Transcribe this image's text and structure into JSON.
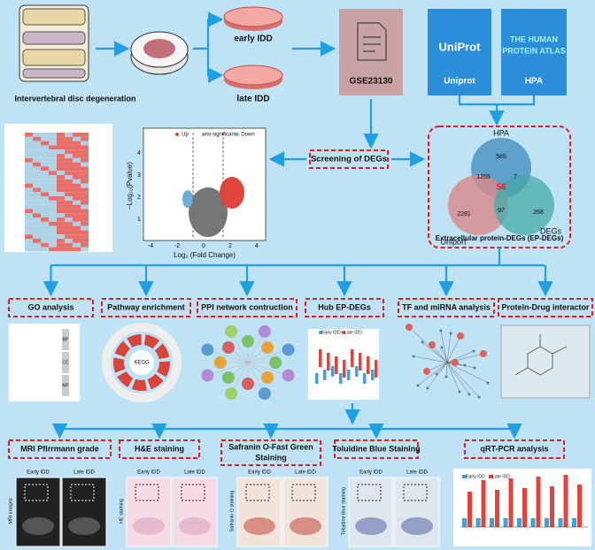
{
  "top": {
    "disc_label": "Intervertebral disc degeneration",
    "early": "early IDD",
    "late": "late IDD",
    "gse": "GSE23130",
    "uniprot_logo": "UniProt",
    "uniprot": "Uniprot",
    "hpa_logo": [
      "THE HUMAN",
      "PROTEIN ATLAS"
    ],
    "hpa": "HPA"
  },
  "screening": "Screening of DEGs",
  "volcano": {
    "legend": [
      "Up",
      "no significant",
      "Down"
    ],
    "x_label": "Log₂ (Fold Change)",
    "y_label": "−Log₁₀(Pvalue)",
    "xticks": [
      -4,
      -2,
      0,
      2,
      4
    ],
    "yticks": [
      1,
      2,
      3,
      4
    ]
  },
  "venn": {
    "labels": {
      "hpa": "HPA",
      "uniport": "Uniport",
      "degs": "DEGs"
    },
    "counts": {
      "hpa_only": 585,
      "hpa_uniport": 1255,
      "hpa_degs": 7,
      "all": 56,
      "uniport_only": 2281,
      "uniport_degs": 97,
      "degs_only": 268
    },
    "caption": "Extracellular protein-DEGs (EP-DEGs)"
  },
  "analyses": [
    "GO analysis",
    "Pathway enrichment",
    "PPI network contruction",
    "Hub  EP-DEGs",
    "TF and miRNA analysis",
    "Protein-Drug interactor"
  ],
  "thumbs": {
    "go_groups": [
      "BP",
      "CC",
      "MF"
    ],
    "kegg": "KEGG",
    "groups": [
      "Early IDD",
      "Late IDD"
    ]
  },
  "validation": {
    "titles": [
      "MRI Pfirrmann grade",
      "H&E staining",
      "Safranin O-Fast Green",
      "Staining",
      "Toluidine Blue Staining",
      "qRT-PCR analysis"
    ],
    "side_labels": [
      "MRI images",
      "HE staining",
      "Safranin O staining",
      "Toluidine blue staining"
    ]
  }
}
